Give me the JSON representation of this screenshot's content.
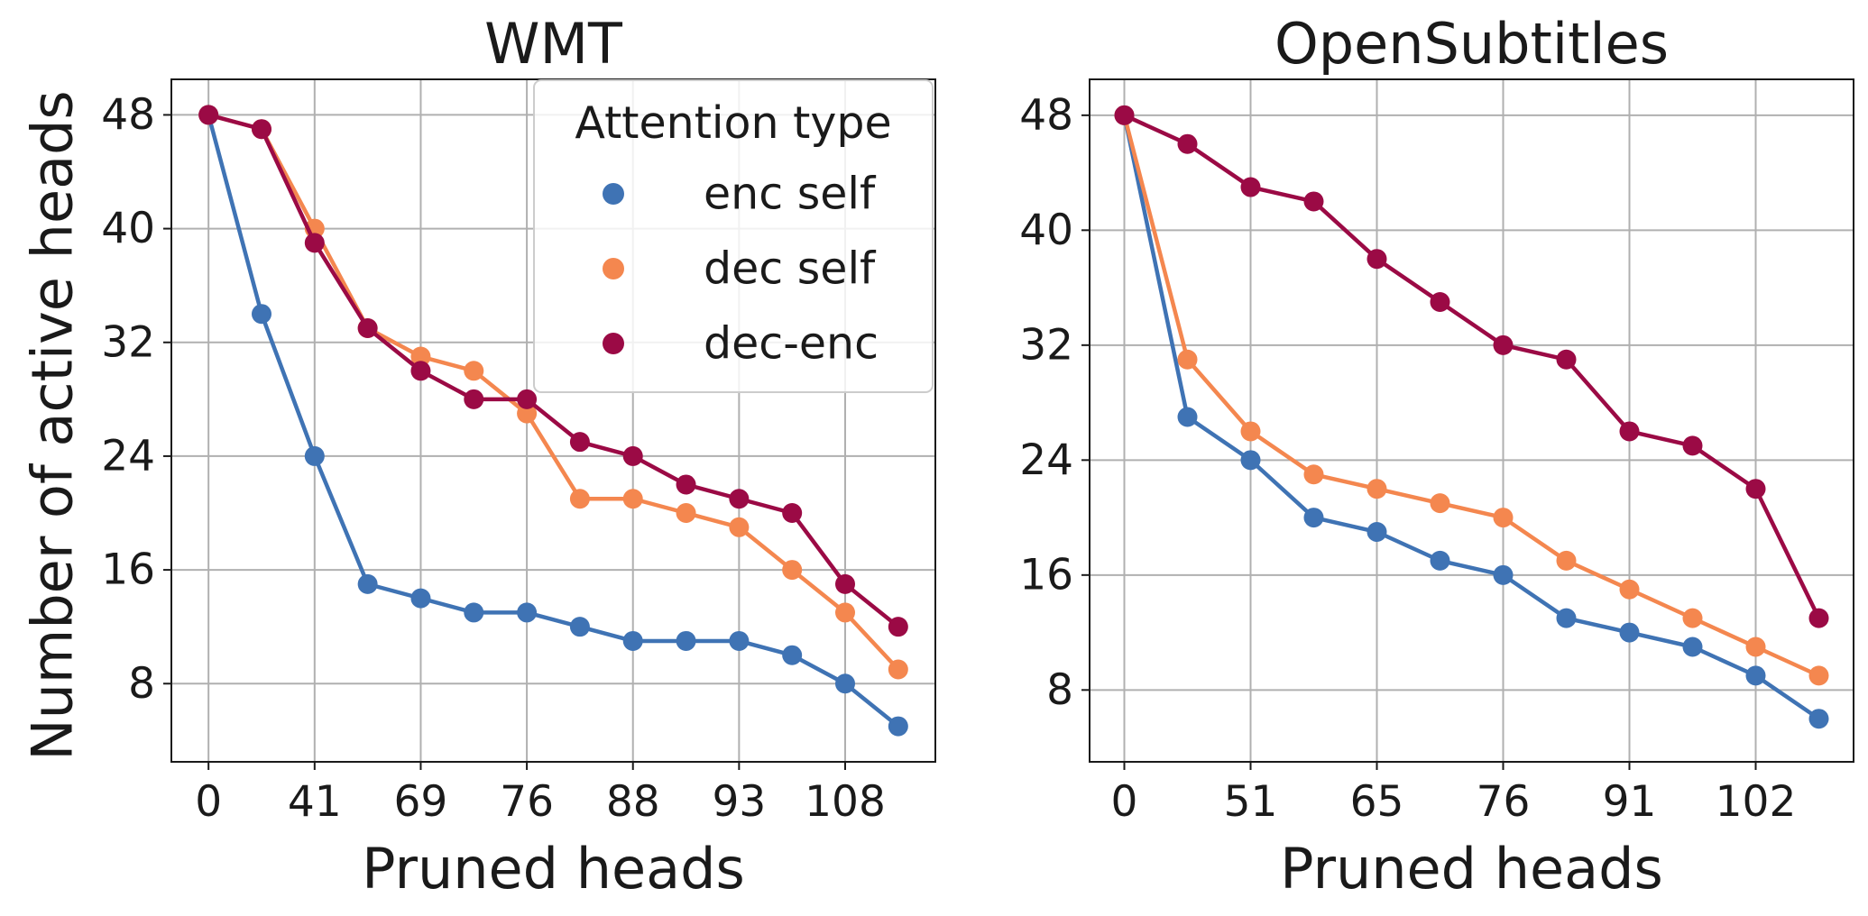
{
  "figure": {
    "ylabel": "Number of active heads",
    "legend": {
      "title": "Attention type",
      "placement": "upper-right of left panel",
      "items": [
        {
          "label": "enc self",
          "color": "#3f73b4"
        },
        {
          "label": "dec self",
          "color": "#f4874f"
        },
        {
          "label": "dec-enc",
          "color": "#9b0a45"
        }
      ]
    }
  },
  "chart_data": [
    {
      "type": "line",
      "title": "WMT",
      "xlabel": "Pruned heads",
      "ylabel": "Number of active heads",
      "grid": true,
      "x_index": [
        0,
        1,
        2,
        3,
        4,
        5,
        6,
        7,
        8,
        9,
        10,
        11,
        12,
        13
      ],
      "x_tick_index": [
        0,
        2,
        4,
        6,
        8,
        10,
        12
      ],
      "x_tick_labels": [
        "0",
        "41",
        "69",
        "76",
        "88",
        "93",
        "108"
      ],
      "y_ticks": [
        8,
        16,
        24,
        32,
        40,
        48
      ],
      "ylim": [
        2.5,
        50.5
      ],
      "xlim": [
        -0.7,
        13.7
      ],
      "series": [
        {
          "name": "enc self",
          "color": "#3f73b4",
          "values": [
            48,
            34,
            24,
            15,
            14,
            13,
            13,
            12,
            11,
            11,
            11,
            10,
            8,
            5
          ]
        },
        {
          "name": "dec self",
          "color": "#f4874f",
          "values": [
            48,
            47,
            40,
            33,
            31,
            30,
            27,
            21,
            21,
            20,
            19,
            16,
            13,
            9
          ]
        },
        {
          "name": "dec-enc",
          "color": "#9b0a45",
          "values": [
            48,
            47,
            39,
            33,
            30,
            28,
            28,
            25,
            24,
            22,
            21,
            20,
            15,
            12
          ]
        }
      ]
    },
    {
      "type": "line",
      "title": "OpenSubtitles",
      "xlabel": "Pruned heads",
      "ylabel": "",
      "grid": true,
      "x_index": [
        0,
        1,
        2,
        3,
        4,
        5,
        6,
        7,
        8,
        9,
        10,
        11
      ],
      "x_tick_index": [
        0,
        2,
        4,
        6,
        8,
        10
      ],
      "x_tick_labels": [
        "0",
        "51",
        "65",
        "76",
        "91",
        "102"
      ],
      "y_ticks": [
        8,
        16,
        24,
        32,
        40,
        48
      ],
      "ylim": [
        3,
        50.5
      ],
      "xlim": [
        -0.55,
        11.55
      ],
      "series": [
        {
          "name": "enc self",
          "color": "#3f73b4",
          "values": [
            48,
            27,
            24,
            20,
            19,
            17,
            16,
            13,
            12,
            11,
            9,
            6
          ]
        },
        {
          "name": "dec self",
          "color": "#f4874f",
          "values": [
            48,
            31,
            26,
            23,
            22,
            21,
            20,
            17,
            15,
            13,
            11,
            9
          ]
        },
        {
          "name": "dec-enc",
          "color": "#9b0a45",
          "values": [
            48,
            46,
            43,
            42,
            38,
            35,
            32,
            31,
            26,
            25,
            22,
            13
          ]
        }
      ]
    }
  ]
}
